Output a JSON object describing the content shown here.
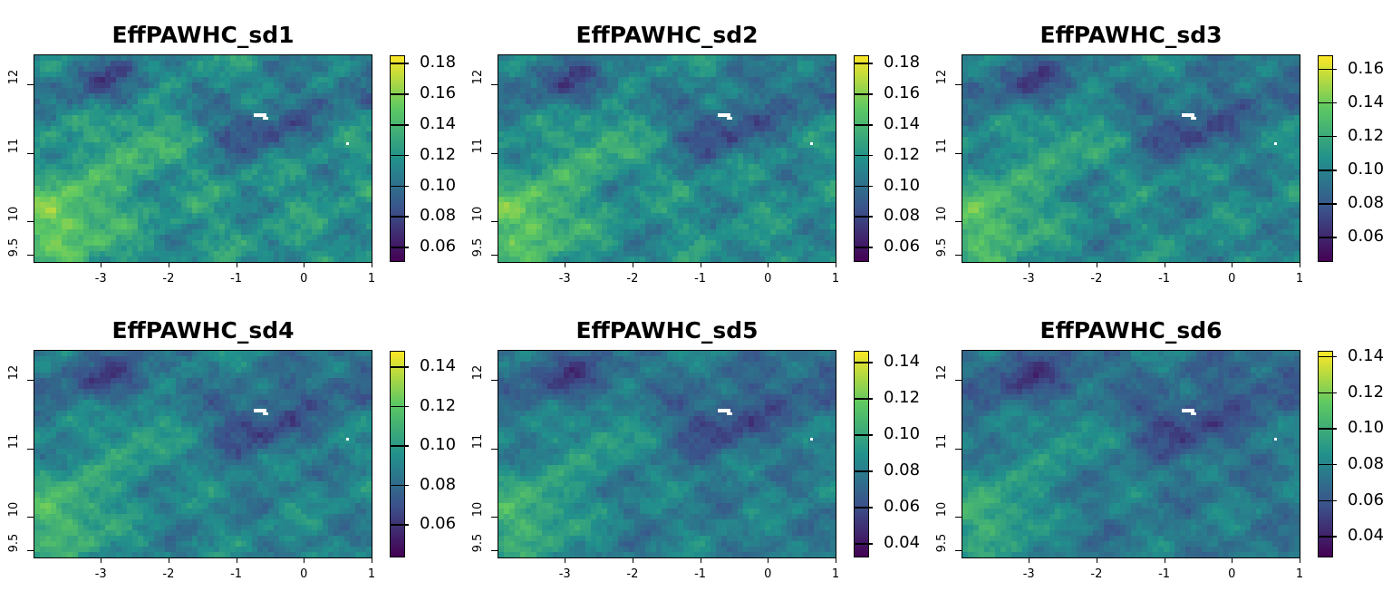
{
  "panels": [
    {
      "title": "EffPAWHC_sd1",
      "legend": {
        "min": 0.05,
        "max": 0.185,
        "ticks": [
          "0.06",
          "0.08",
          "0.10",
          "0.12",
          "0.14",
          "0.16",
          "0.18"
        ],
        "values": [
          0.06,
          0.08,
          0.1,
          0.12,
          0.14,
          0.16,
          0.18
        ]
      }
    },
    {
      "title": "EffPAWHC_sd2",
      "legend": {
        "min": 0.05,
        "max": 0.185,
        "ticks": [
          "0.06",
          "0.08",
          "0.10",
          "0.12",
          "0.14",
          "0.16",
          "0.18"
        ],
        "values": [
          0.06,
          0.08,
          0.1,
          0.12,
          0.14,
          0.16,
          0.18
        ]
      }
    },
    {
      "title": "EffPAWHC_sd3",
      "legend": {
        "min": 0.045,
        "max": 0.168,
        "ticks": [
          "0.06",
          "0.08",
          "0.10",
          "0.12",
          "0.14",
          "0.16"
        ],
        "values": [
          0.06,
          0.08,
          0.1,
          0.12,
          0.14,
          0.16
        ]
      }
    },
    {
      "title": "EffPAWHC_sd4",
      "legend": {
        "min": 0.043,
        "max": 0.148,
        "ticks": [
          "0.06",
          "0.08",
          "0.10",
          "0.12",
          "0.14"
        ],
        "values": [
          0.06,
          0.08,
          0.1,
          0.12,
          0.14
        ]
      }
    },
    {
      "title": "EffPAWHC_sd5",
      "legend": {
        "min": 0.032,
        "max": 0.146,
        "ticks": [
          "0.04",
          "0.06",
          "0.08",
          "0.10",
          "0.12",
          "0.14"
        ],
        "values": [
          0.04,
          0.06,
          0.08,
          0.1,
          0.12,
          0.14
        ]
      }
    },
    {
      "title": "EffPAWHC_sd6",
      "legend": {
        "min": 0.028,
        "max": 0.143,
        "ticks": [
          "0.04",
          "0.06",
          "0.08",
          "0.10",
          "0.12",
          "0.14"
        ],
        "values": [
          0.04,
          0.06,
          0.08,
          0.1,
          0.12,
          0.14
        ]
      }
    }
  ],
  "axes": {
    "x_ticks": [
      "-3",
      "-2",
      "-1",
      "0",
      "1"
    ],
    "x_values": [
      -3,
      -2,
      -1,
      0,
      1
    ],
    "x_range": [
      -3.98,
      1.0
    ],
    "y_ticks": [
      "9.5",
      "10",
      "11",
      "12"
    ],
    "y_values": [
      9.5,
      10,
      11,
      12
    ],
    "y_range": [
      9.4,
      12.43
    ]
  },
  "colormap": "viridis",
  "colors": [
    "#440154",
    "#3b528b",
    "#21918c",
    "#5ec962",
    "#fde725"
  ]
}
